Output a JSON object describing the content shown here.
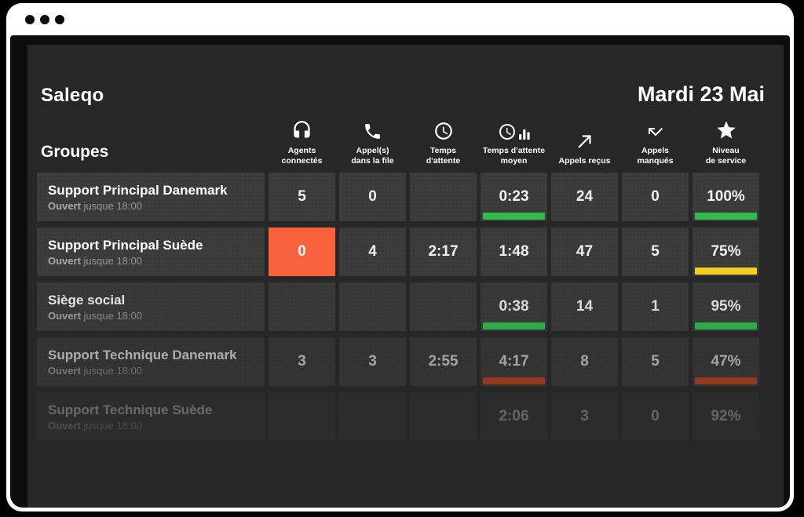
{
  "window": {
    "app_title": "Saleqo",
    "date": "Mardi 23 Mai"
  },
  "colors": {
    "green": "#2ebd4e",
    "yellow": "#f2cf22",
    "red": "#d8431f",
    "orange": "#f7623c",
    "panel": "#272727",
    "cell": "#3a3a3a"
  },
  "table": {
    "groups_label": "Groupes",
    "columns": [
      {
        "id": "agents_connectes",
        "icon": "headset-icon",
        "label": "Agents\nconnectés"
      },
      {
        "id": "appels_dans_la_file",
        "icon": "phone-icon",
        "label": "Appel(s)\ndans la file"
      },
      {
        "id": "temps_attente",
        "icon": "clock-icon",
        "label": "Temps\nd'attente"
      },
      {
        "id": "temps_attente_moyen",
        "icon": "clock-chart-icon",
        "label": "Temps d'attente\nmoyen"
      },
      {
        "id": "appels_recus",
        "icon": "arrow-up-right-icon",
        "label": "Appels reçus"
      },
      {
        "id": "appels_manques",
        "icon": "call-missed-icon",
        "label": "Appels\nmanqués"
      },
      {
        "id": "niveau_service",
        "icon": "star-icon",
        "label": "Niveau\nde service"
      }
    ],
    "rows": [
      {
        "name": "Support Principal Danemark",
        "status_bold": "Ouvert",
        "status_text": " jusque 18:00",
        "opacity": 1,
        "cells": [
          {
            "value": "5"
          },
          {
            "value": "0"
          },
          {
            "value": ""
          },
          {
            "value": "0:23",
            "bar": "green"
          },
          {
            "value": "24"
          },
          {
            "value": "0"
          },
          {
            "value": "100%",
            "bar": "green"
          }
        ]
      },
      {
        "name": "Support Principal Suède",
        "status_bold": "Ouvert",
        "status_text": " jusque 18:00",
        "opacity": 1,
        "cells": [
          {
            "value": "0",
            "highlight": "orange"
          },
          {
            "value": "4"
          },
          {
            "value": "2:17"
          },
          {
            "value": "1:48"
          },
          {
            "value": "47"
          },
          {
            "value": "5"
          },
          {
            "value": "75%",
            "bar": "yellow"
          }
        ]
      },
      {
        "name": "Siège social",
        "status_bold": "Ouvert",
        "status_text": " jusque 18:00",
        "opacity": 0.88,
        "cells": [
          {
            "value": ""
          },
          {
            "value": ""
          },
          {
            "value": ""
          },
          {
            "value": "0:38",
            "bar": "green"
          },
          {
            "value": "14"
          },
          {
            "value": "1"
          },
          {
            "value": "95%",
            "bar": "green"
          }
        ]
      },
      {
        "name": "Support Technique Danemark",
        "status_bold": "Ouvert",
        "status_text": " jusque 18:00",
        "opacity": 0.62,
        "cells": [
          {
            "value": "3"
          },
          {
            "value": "3"
          },
          {
            "value": "2:55"
          },
          {
            "value": "4:17",
            "bar": "red"
          },
          {
            "value": "8"
          },
          {
            "value": "5"
          },
          {
            "value": "47%",
            "bar": "red"
          }
        ]
      },
      {
        "name": "Support Technique Suède",
        "status_bold": "Ouvert",
        "status_text": " jusque 18:00",
        "opacity": 0.3,
        "cells": [
          {
            "value": ""
          },
          {
            "value": ""
          },
          {
            "value": ""
          },
          {
            "value": "2:06"
          },
          {
            "value": "3"
          },
          {
            "value": "0"
          },
          {
            "value": "92%"
          }
        ]
      }
    ]
  }
}
